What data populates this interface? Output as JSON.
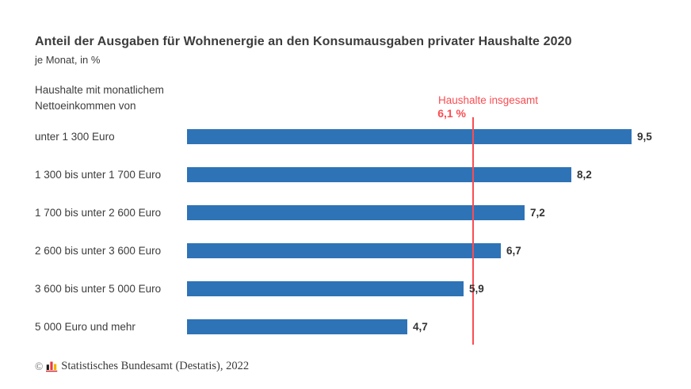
{
  "title": "Anteil der Ausgaben für Wohnenergie an den Konsumausgaben privater Haushalte 2020",
  "subtitle": "je Monat, in %",
  "group_label": {
    "line1": "Haushalte mit monatlichem",
    "line2": "Nettoeinkommen von"
  },
  "reference": {
    "label": "Haushalte insgesamt",
    "value_label": "6,1 %"
  },
  "chart_data": {
    "type": "bar",
    "orientation": "horizontal",
    "title": "Anteil der Ausgaben für Wohnenergie an den Konsumausgaben privater Haushalte 2020",
    "subtitle": "je Monat, in %",
    "unit": "% der Konsumausgaben, je Monat",
    "categories": [
      "unter 1 300 Euro",
      "1 300 bis unter 1 700 Euro",
      "1 700 bis unter 2 600 Euro",
      "2 600 bis unter 3 600 Euro",
      "3 600 bis unter 5 000 Euro",
      "5 000 Euro und mehr"
    ],
    "values": [
      9.5,
      8.2,
      7.2,
      6.7,
      5.9,
      4.7
    ],
    "value_labels": [
      "9,5",
      "8,2",
      "7,2",
      "6,7",
      "5,9",
      "4,7"
    ],
    "reference_line": {
      "label": "Haushalte insgesamt",
      "value": 6.1,
      "value_label": "6,1 %"
    },
    "xlim": [
      0,
      10.6
    ],
    "grid": false,
    "legend": false,
    "bar_color": "#2e73b6",
    "reference_color": "#fa4d52"
  },
  "footer": {
    "copyright": "©",
    "text": "Statistisches Bundesamt (Destatis), 2022"
  }
}
